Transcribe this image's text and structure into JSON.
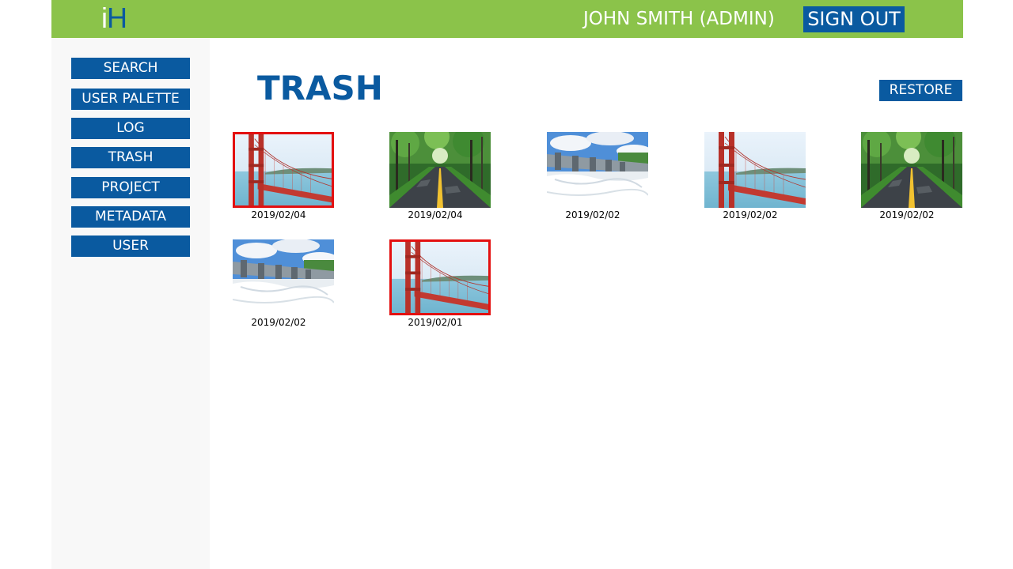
{
  "header": {
    "logo_i": "i",
    "logo_h": "H",
    "user_label": "JOHN SMITH (ADMIN)",
    "sign_out_label": "SIGN OUT"
  },
  "sidebar": {
    "items": [
      {
        "label": "SEARCH"
      },
      {
        "label": "USER PALETTE"
      },
      {
        "label": "LOG"
      },
      {
        "label": "TRASH"
      },
      {
        "label": "PROJECT"
      },
      {
        "label": "METADATA"
      },
      {
        "label": "USER"
      }
    ]
  },
  "main": {
    "title": "TRASH",
    "restore_label": "RESTORE",
    "items": [
      {
        "date": "2019/02/04",
        "image": "golden-gate-bridge",
        "selected": true
      },
      {
        "date": "2019/02/04",
        "image": "forest-road",
        "selected": false
      },
      {
        "date": "2019/02/02",
        "image": "dam-spillway",
        "selected": false
      },
      {
        "date": "2019/02/02",
        "image": "golden-gate-bridge",
        "selected": false
      },
      {
        "date": "2019/02/02",
        "image": "forest-road",
        "selected": false
      },
      {
        "date": "2019/02/02",
        "image": "dam-spillway",
        "selected": false
      },
      {
        "date": "2019/02/01",
        "image": "golden-gate-bridge",
        "selected": true
      }
    ]
  },
  "colors": {
    "header_bg": "#8bc34a",
    "brand_blue": "#0a5aa0",
    "selection_red": "#e31010",
    "sidebar_bg": "#f8f8f8"
  }
}
